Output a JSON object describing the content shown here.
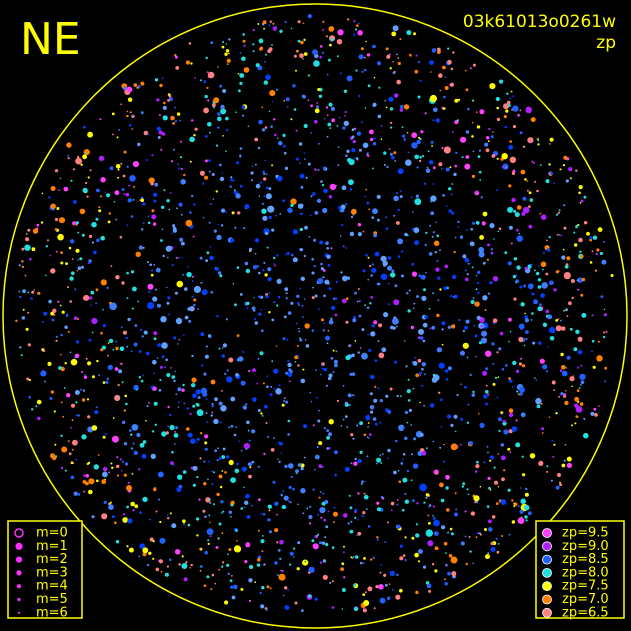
{
  "header": {
    "direction": "NE",
    "image_id": "03k61013o0261w",
    "mode": "zp"
  },
  "magnitude_legend": {
    "color": "#ff30ff",
    "items": [
      "m=0",
      "m=1",
      "m=2",
      "m=3",
      "m=4",
      "m=5",
      "m=6"
    ]
  },
  "zp_legend": {
    "items": [
      {
        "label": "zp=9.5",
        "color": "#ff40ff"
      },
      {
        "label": "zp=9.0",
        "color": "#b020ff"
      },
      {
        "label": "zp=8.5",
        "color": "#2060ff"
      },
      {
        "label": "zp=8.0",
        "color": "#20e0e0"
      },
      {
        "label": "zp=7.5",
        "color": "#ffff00"
      },
      {
        "label": "zp=7.0",
        "color": "#ff8000"
      },
      {
        "label": "zp=6.5",
        "color": "#ff8080"
      }
    ]
  }
}
